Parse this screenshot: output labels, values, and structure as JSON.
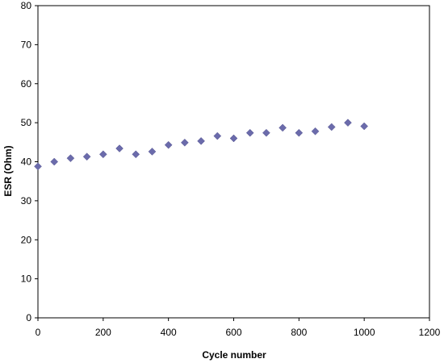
{
  "chart_data": {
    "type": "scatter",
    "title": "",
    "xlabel": "Cycle number",
    "ylabel": "ESR (Ohm)",
    "xlim": [
      0,
      1200
    ],
    "ylim": [
      0,
      80
    ],
    "xticks": [
      0,
      200,
      400,
      600,
      800,
      1000,
      1200
    ],
    "yticks": [
      0,
      10,
      20,
      30,
      40,
      50,
      60,
      70,
      80
    ],
    "grid": false,
    "legend": "none",
    "marker": "diamond",
    "marker_color": "#6b6bab",
    "series": [
      {
        "x": [
          0,
          50,
          100,
          150,
          200,
          250,
          300,
          350,
          400,
          450,
          500,
          550,
          600,
          650,
          700,
          750,
          800,
          850,
          900,
          950,
          1000
        ],
        "y": [
          38.8,
          40.0,
          40.9,
          41.3,
          41.9,
          43.4,
          41.9,
          42.6,
          44.3,
          44.9,
          45.3,
          46.6,
          46.0,
          47.4,
          47.4,
          48.7,
          47.4,
          47.8,
          48.9,
          50.0,
          49.1
        ]
      }
    ]
  }
}
